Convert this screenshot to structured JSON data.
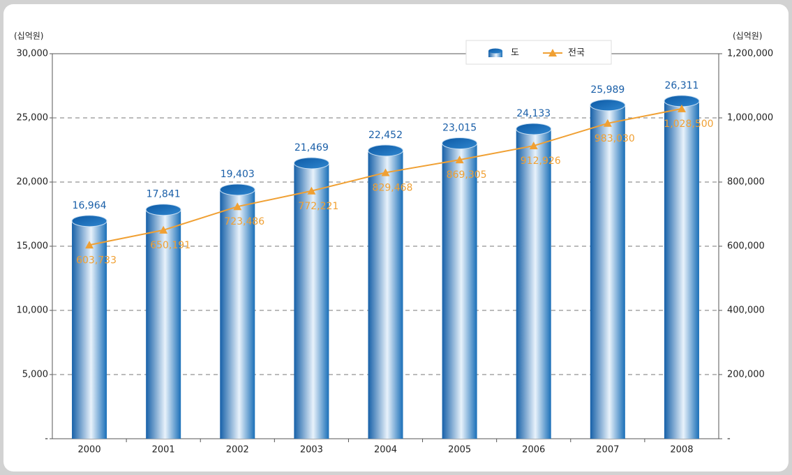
{
  "chart_data": {
    "type": "bar",
    "y_unit": "(십억원)",
    "y2_unit": "(십억원)",
    "categories": [
      "2000",
      "2001",
      "2002",
      "2003",
      "2004",
      "2005",
      "2006",
      "2007",
      "2008"
    ],
    "series": [
      {
        "name": "도",
        "type": "bar",
        "color": "#1a6fb8",
        "values": [
          16964,
          17841,
          19403,
          21469,
          22452,
          23015,
          24133,
          25989,
          26311
        ],
        "value_labels": [
          "16,964",
          "17,841",
          "19,403",
          "21,469",
          "22,452",
          "23,015",
          "24,133",
          "25,989",
          "26,311"
        ]
      },
      {
        "name": "전국",
        "type": "line",
        "axis": "y2",
        "color": "#f0a033",
        "values": [
          603733,
          650191,
          723486,
          772221,
          829468,
          869305,
          912926,
          983030,
          1028500
        ],
        "value_labels": [
          "603,733",
          "650,191",
          "723,486",
          "772,221",
          "829,468",
          "869,305",
          "912,926",
          "983,030",
          "1,028,500"
        ]
      }
    ],
    "ylim": [
      0,
      30000
    ],
    "yticks": [
      {
        "value": 0,
        "label": "-"
      },
      {
        "value": 5000,
        "label": "5,000"
      },
      {
        "value": 10000,
        "label": "10,000"
      },
      {
        "value": 15000,
        "label": "15,000"
      },
      {
        "value": 20000,
        "label": "20,000"
      },
      {
        "value": 25000,
        "label": "25,000"
      },
      {
        "value": 30000,
        "label": "30,000"
      }
    ],
    "y2lim": [
      0,
      1200000
    ],
    "y2ticks": [
      {
        "value": 0,
        "label": "-"
      },
      {
        "value": 200000,
        "label": "200,000"
      },
      {
        "value": 400000,
        "label": "400,000"
      },
      {
        "value": 600000,
        "label": "600,000"
      },
      {
        "value": 800000,
        "label": "800,000"
      },
      {
        "value": 1000000,
        "label": "1,000,000"
      },
      {
        "value": 1200000,
        "label": "1,200,000"
      }
    ],
    "grid": true,
    "legend": "top"
  }
}
